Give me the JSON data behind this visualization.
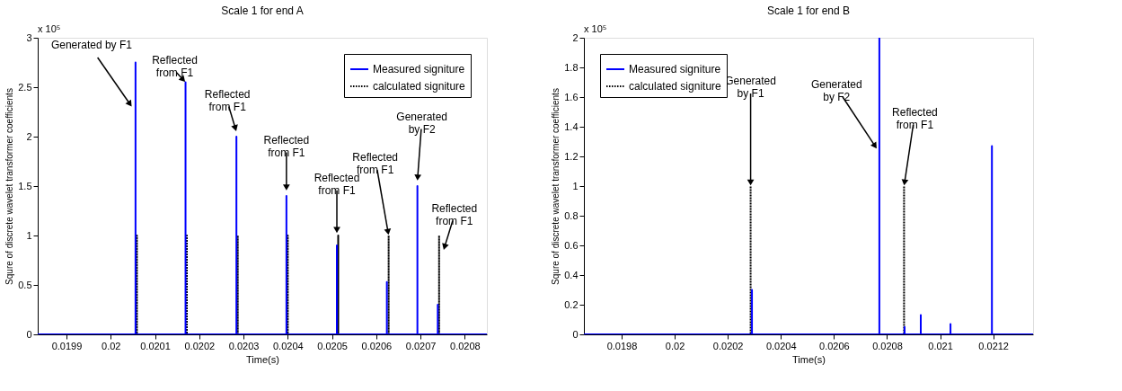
{
  "chart_data": [
    {
      "type": "line",
      "title": "Scale 1 for end A",
      "xlabel": "Time(s)",
      "ylabel": "Squre of discrete wavelet transformer coefficients",
      "xlim": [
        0.019835,
        0.02085
      ],
      "xticks": [
        0.0199,
        0.02,
        0.0201,
        0.0202,
        0.0203,
        0.0204,
        0.0205,
        0.0206,
        0.0207,
        0.0208
      ],
      "ylim": [
        0,
        3
      ],
      "yticks": [
        0,
        0.5,
        1,
        1.5,
        2,
        2.5,
        3
      ],
      "grid": false,
      "legend": "top right",
      "series": [
        {
          "name": "Measured signiture",
          "color": "#0000ff",
          "line_style": "solid",
          "x": [
            0.019835,
            0.020056,
            0.020056,
            0.020056,
            0.020169,
            0.020169,
            0.020169,
            0.020284,
            0.020284,
            0.020284,
            0.020397,
            0.020397,
            0.020397,
            0.020511,
            0.020511,
            0.020511,
            0.020624,
            0.020624,
            0.020624,
            0.020693,
            0.020693,
            0.020693,
            0.020739,
            0.020739,
            0.020739,
            0.02085
          ],
          "values": [
            0,
            0,
            2.75,
            0,
            0,
            2.55,
            0,
            0,
            2.0,
            0,
            0,
            1.4,
            0,
            0,
            0.9,
            0,
            0,
            0.53,
            0,
            0,
            1.5,
            0,
            0,
            0.3,
            0,
            0
          ]
        },
        {
          "name": "calculated signiture",
          "color": "#000000",
          "line_style": "dotted",
          "x": [
            0.019835,
            0.020059,
            0.020059,
            0.020059,
            0.020172,
            0.020172,
            0.020172,
            0.020287,
            0.020287,
            0.020287,
            0.0204,
            0.0204,
            0.0204,
            0.020514,
            0.020514,
            0.020514,
            0.020628,
            0.020628,
            0.020628,
            0.020742,
            0.020742,
            0.020742,
            0.02085
          ],
          "values": [
            0,
            0,
            1,
            0,
            0,
            1,
            0,
            0,
            1,
            0,
            0,
            1,
            0,
            0,
            1,
            0,
            0,
            1,
            0,
            0,
            1,
            0,
            0
          ]
        }
      ],
      "annotations": [
        "x 10⁵",
        {
          "text": "Generated by F1",
          "x": 0.020048,
          "y": 2.3
        },
        {
          "text": "Reflected\nfrom F1",
          "x": 0.020169,
          "y": 2.55
        },
        {
          "text": "Reflected\nfrom F1",
          "x": 0.020284,
          "y": 2.05
        },
        {
          "text": "Reflected\nfrom F1",
          "x": 0.020397,
          "y": 1.45
        },
        {
          "text": "Reflected\nfrom F1",
          "x": 0.020511,
          "y": 1.02
        },
        {
          "text": "Reflected\nfrom F1",
          "x": 0.020628,
          "y": 1.0
        },
        {
          "text": "Generated\nby F2",
          "x": 0.020693,
          "y": 1.55
        },
        {
          "text": "Reflected\nfrom F1",
          "x": 0.020752,
          "y": 0.85
        }
      ]
    },
    {
      "type": "line",
      "title": "Scale 1 for end B",
      "xlabel": "Time(s)",
      "ylabel": "Squre of discrete wavelet transformer coefficients",
      "xlim": [
        0.019658,
        0.02135
      ],
      "xticks": [
        0.0198,
        0.02,
        0.0202,
        0.0204,
        0.0206,
        0.0208,
        0.021,
        0.0212
      ],
      "ylim": [
        0,
        2
      ],
      "yticks": [
        0,
        0.2,
        0.4,
        0.6,
        0.8,
        1,
        1.2,
        1.4,
        1.6,
        1.8,
        2
      ],
      "grid": false,
      "legend": "top left",
      "series": [
        {
          "name": "Measured signiture",
          "color": "#0000ff",
          "line_style": "solid",
          "x": [
            0.019658,
            0.020291,
            0.020291,
            0.020291,
            0.020771,
            0.020771,
            0.020771,
            0.020866,
            0.020866,
            0.020866,
            0.020927,
            0.020927,
            0.020927,
            0.021039,
            0.021039,
            0.021039,
            0.021195,
            0.021195,
            0.021195,
            0.02135
          ],
          "values": [
            0,
            0,
            0.3,
            0,
            0,
            2.0,
            0,
            0,
            0.05,
            0,
            0,
            0.13,
            0,
            0,
            0.07,
            0,
            0,
            1.27,
            0,
            0
          ]
        },
        {
          "name": "calculated signiture",
          "color": "#000000",
          "line_style": "dotted",
          "x": [
            0.019658,
            0.020286,
            0.020286,
            0.020286,
            0.020864,
            0.020864,
            0.020864,
            0.02135
          ],
          "values": [
            0,
            0,
            1,
            0,
            0,
            1,
            0,
            0
          ]
        }
      ],
      "annotations": [
        "x 10⁵",
        {
          "text": "Generated\nby F1",
          "x": 0.020286,
          "y": 1.0
        },
        {
          "text": "Generated\nby F2",
          "x": 0.020762,
          "y": 1.25
        },
        {
          "text": "Reflected\nfrom F1",
          "x": 0.020864,
          "y": 1.0
        }
      ]
    }
  ]
}
